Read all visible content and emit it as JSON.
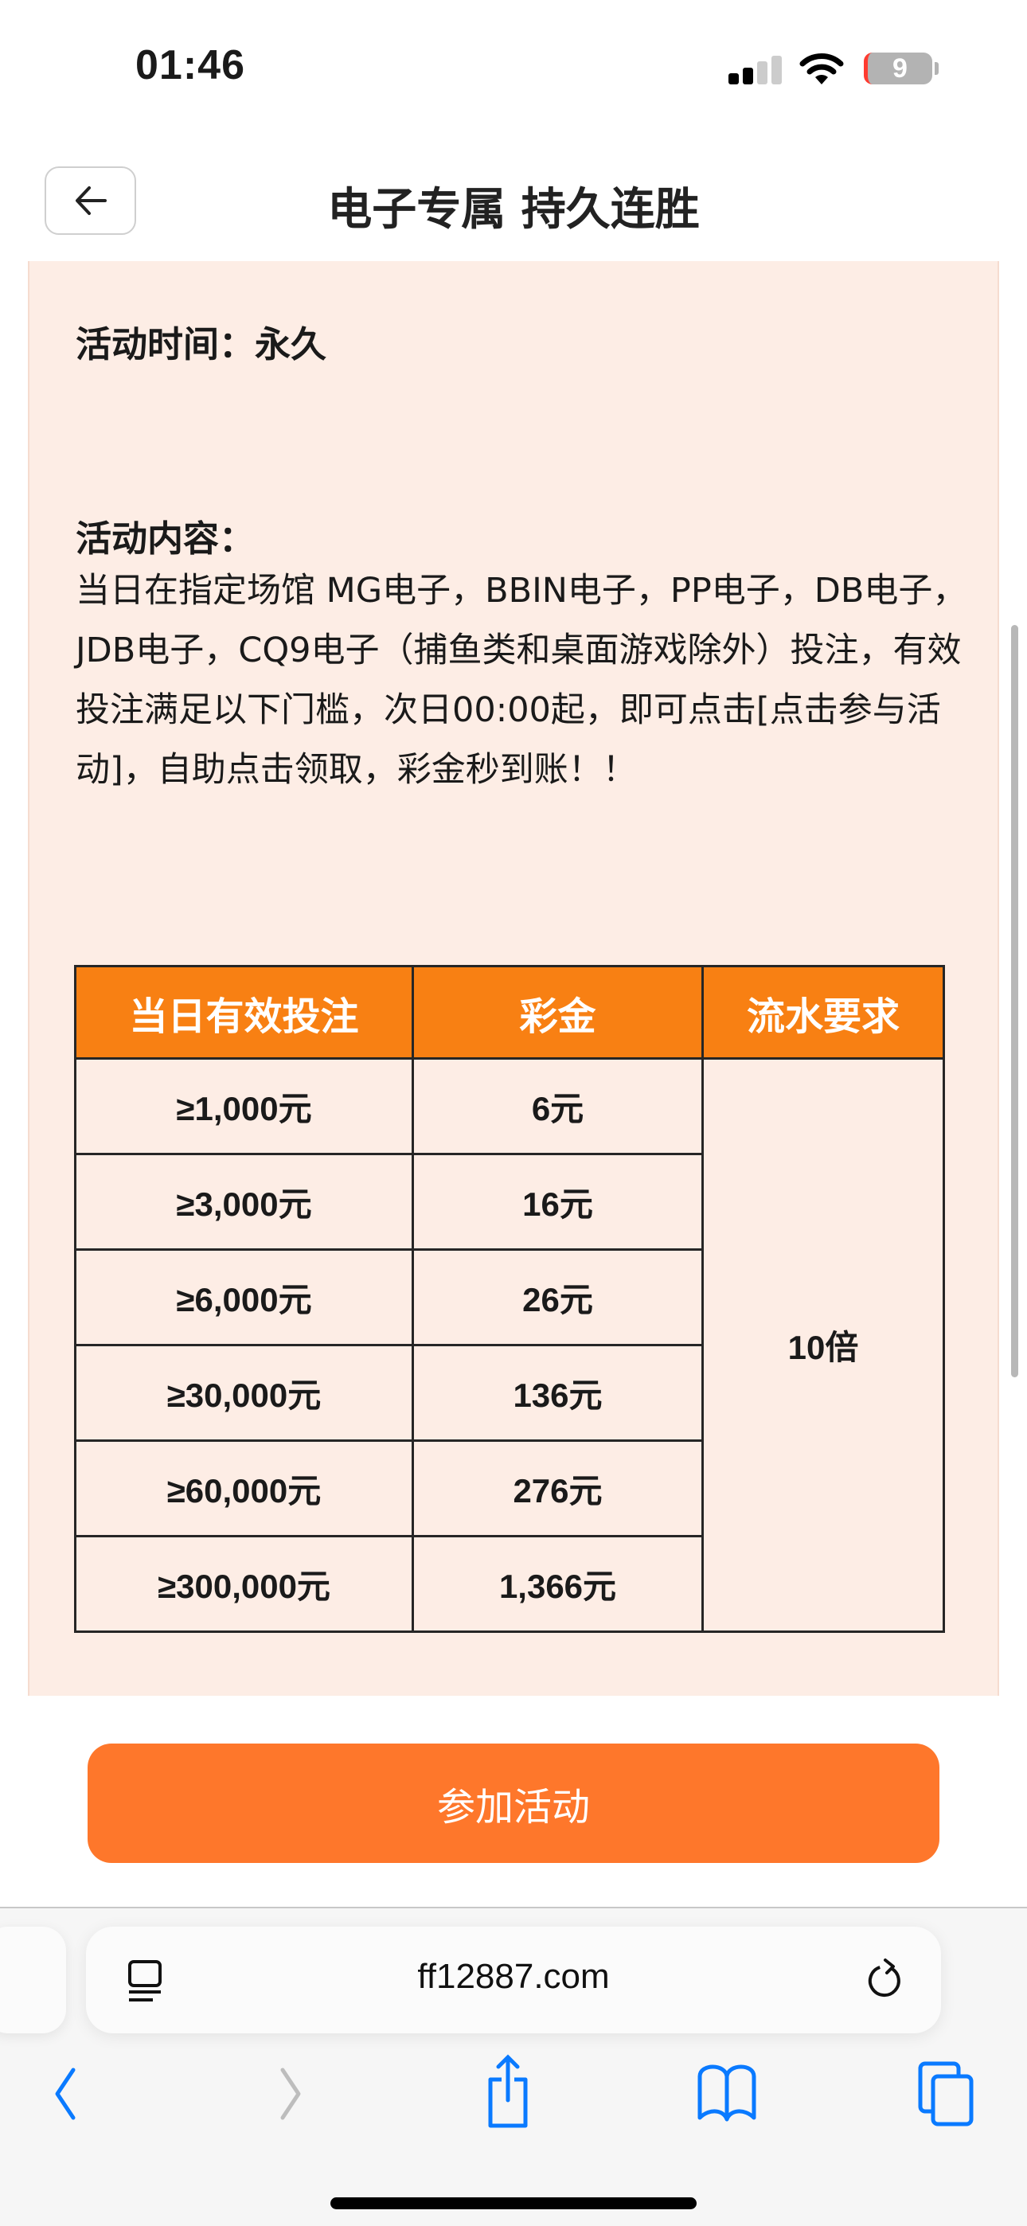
{
  "status_bar": {
    "time": "01:46",
    "battery": "9",
    "signal_bars": 2,
    "icons": [
      "signal-icon",
      "wifi-icon",
      "battery-icon"
    ]
  },
  "header": {
    "title": "电子专属 持久连胜",
    "back_icon": "arrow-left-icon"
  },
  "content": {
    "time_label": "活动时间：永久",
    "content_label": "活动内容：",
    "content_body": "当日在指定场馆 MG电子，BBIN电子，PP电子，DB电子，JDB电子，CQ9电子（捕鱼类和桌面游戏除外）投注，有效投注满足以下门槛，次日00:00起，即可点击[点击参与活动]，自助点击领取，彩金秒到账！！"
  },
  "table": {
    "headers": [
      "当日有效投注",
      "彩金",
      "流水要求"
    ],
    "rows": [
      {
        "bet": "≥1,000元",
        "bonus": "6元"
      },
      {
        "bet": "≥3,000元",
        "bonus": "16元"
      },
      {
        "bet": "≥6,000元",
        "bonus": "26元"
      },
      {
        "bet": "≥30,000元",
        "bonus": "136元"
      },
      {
        "bet": "≥60,000元",
        "bonus": "276元"
      },
      {
        "bet": "≥300,000元",
        "bonus": "1,366元"
      }
    ],
    "turnover": "10倍",
    "header_color": "#f88013"
  },
  "join_button": {
    "label": "参加活动",
    "color": "#fe772b"
  },
  "browser": {
    "url": "ff12887.com",
    "toolbar_icons": [
      "back-icon",
      "forward-icon",
      "share-icon",
      "bookmarks-icon",
      "tabs-icon"
    ],
    "accent": "#0a7aff"
  }
}
